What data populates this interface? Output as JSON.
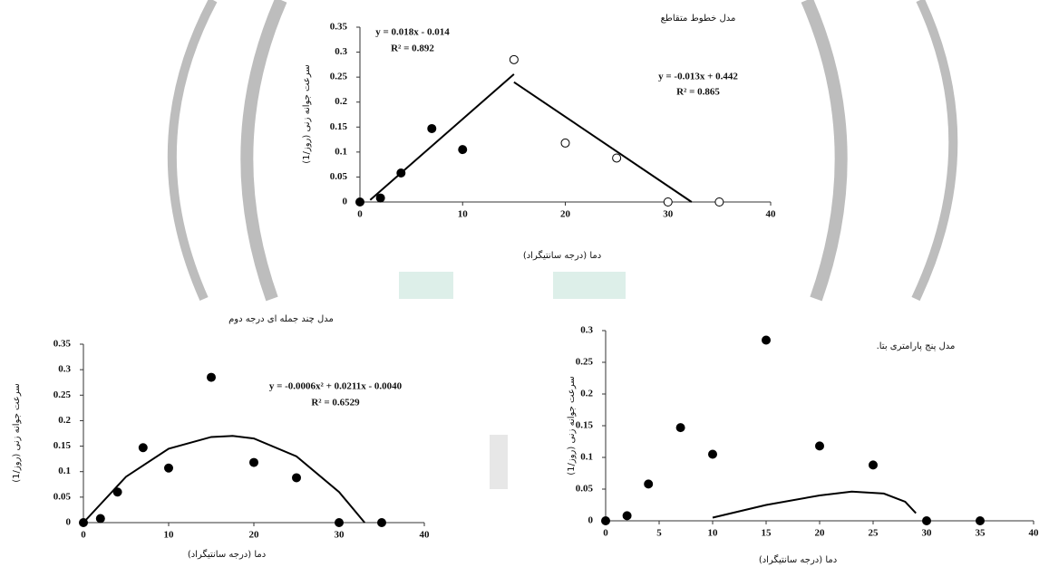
{
  "chart_data": [
    {
      "type": "scatter",
      "title": "مدل خطوط متقاطع",
      "x_label": "دما (درجه سانتیگراد)",
      "y_label": "سرعت جوانه زنی (روز/1)",
      "xlim": [
        0,
        40
      ],
      "xticks": [
        0,
        10,
        20,
        30,
        40
      ],
      "ylim": [
        0,
        0.35
      ],
      "yticks": [
        0,
        0.05,
        0.1,
        0.15,
        0.2,
        0.25,
        0.3,
        0.35
      ],
      "annotations": [
        "y = 0.018x - 0.014",
        "R² = 0.892",
        "y = -0.013x + 0.442",
        "R² = 0.865"
      ],
      "series": [
        {
          "style": "points",
          "marker": "filled",
          "color": "#000000",
          "x": [
            0,
            2,
            4,
            7,
            10
          ],
          "values": [
            0,
            0.008,
            0.058,
            0.147,
            0.105
          ]
        },
        {
          "style": "points",
          "marker": "open",
          "color": "#000000",
          "x": [
            15,
            20,
            25,
            30,
            35
          ],
          "values": [
            0.285,
            0.118,
            0.088,
            0,
            0
          ]
        },
        {
          "style": "line",
          "color": "#000000",
          "x": [
            1,
            15
          ],
          "values": [
            0.004,
            0.256
          ]
        },
        {
          "style": "line",
          "color": "#000000",
          "x": [
            15,
            32.3
          ],
          "values": [
            0.24,
            0
          ]
        }
      ]
    },
    {
      "type": "scatter",
      "title": "مدل چند جمله ای درجه دوم",
      "x_label": "دما (درجه سانتیگراد)",
      "y_label": "سرعت جوانه زنی (روز/1)",
      "xlim": [
        0,
        40
      ],
      "xticks": [
        0,
        10,
        20,
        30,
        40
      ],
      "ylim": [
        0,
        0.35
      ],
      "yticks": [
        0,
        0.05,
        0.1,
        0.15,
        0.2,
        0.25,
        0.3,
        0.35
      ],
      "annotations": [
        "y = -0.0006x² + 0.0211x - 0.0040",
        "R² = 0.6529"
      ],
      "series": [
        {
          "style": "points",
          "marker": "filled",
          "color": "#000000",
          "x": [
            0,
            2,
            4,
            7,
            10,
            15,
            20,
            25,
            30,
            35
          ],
          "values": [
            0,
            0.008,
            0.06,
            0.147,
            0.107,
            0.285,
            0.118,
            0.088,
            0,
            0
          ]
        },
        {
          "style": "line",
          "color": "#000000",
          "x": [
            0,
            5,
            10,
            15,
            17.5,
            20,
            25,
            30,
            33
          ],
          "values": [
            0,
            0.09,
            0.145,
            0.168,
            0.17,
            0.165,
            0.13,
            0.06,
            0
          ]
        }
      ]
    },
    {
      "type": "scatter",
      "title": ".مدل پنج پارامتری بتا",
      "x_label": "دما (درجه سانتیگراد)",
      "y_label": "سرعت جوانه زنی (روز/1)",
      "xlim": [
        0,
        40
      ],
      "xticks": [
        0,
        5,
        10,
        15,
        20,
        25,
        30,
        35,
        40
      ],
      "ylim": [
        0,
        0.3
      ],
      "yticks": [
        0,
        0.05,
        0.1,
        0.15,
        0.2,
        0.25,
        0.3
      ],
      "annotations": [],
      "series": [
        {
          "style": "points",
          "marker": "filled",
          "color": "#000000",
          "x": [
            0,
            2,
            4,
            7,
            10,
            15,
            20,
            25,
            30,
            35
          ],
          "values": [
            0,
            0.008,
            0.058,
            0.147,
            0.105,
            0.285,
            0.118,
            0.088,
            0,
            0
          ]
        },
        {
          "style": "line",
          "color": "#000000",
          "x": [
            10,
            15,
            20,
            23,
            26,
            28,
            29
          ],
          "values": [
            0.005,
            0.025,
            0.04,
            0.046,
            0.043,
            0.03,
            0.012
          ]
        }
      ]
    }
  ]
}
